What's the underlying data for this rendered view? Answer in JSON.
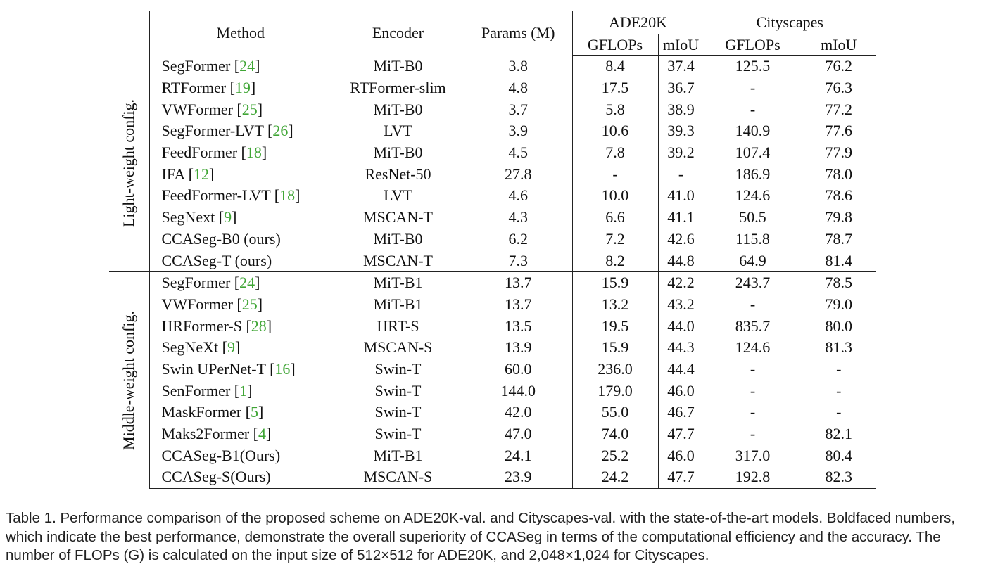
{
  "table": {
    "headers": {
      "method": "Method",
      "encoder": "Encoder",
      "params": "Params (M)",
      "ade20k": "ADE20K",
      "cityscapes": "Cityscapes",
      "gflops": "GFLOPs",
      "miou": "mIoU"
    },
    "groups": [
      {
        "label": "Light-weight config.",
        "rows": [
          {
            "name": "SegFormer",
            "ref": "24",
            "encoder": "MiT-B0",
            "params": "3.8",
            "ade_gflops": "8.4",
            "ade_miou": "37.4",
            "city_gflops": "125.5",
            "city_miou": "76.2",
            "bold": false
          },
          {
            "name": "RTFormer",
            "ref": "19",
            "encoder": "RTFormer-slim",
            "params": "4.8",
            "ade_gflops": "17.5",
            "ade_miou": "36.7",
            "city_gflops": "-",
            "city_miou": "76.3",
            "bold": false
          },
          {
            "name": "VWFormer",
            "ref": "25",
            "encoder": "MiT-B0",
            "params": "3.7",
            "ade_gflops": "5.8",
            "ade_miou": "38.9",
            "city_gflops": "-",
            "city_miou": "77.2",
            "bold": false
          },
          {
            "name": "SegFormer-LVT",
            "ref": "26",
            "encoder": "LVT",
            "params": "3.9",
            "ade_gflops": "10.6",
            "ade_miou": "39.3",
            "city_gflops": "140.9",
            "city_miou": "77.6",
            "bold": false
          },
          {
            "name": "FeedFormer",
            "ref": "18",
            "encoder": "MiT-B0",
            "params": "4.5",
            "ade_gflops": "7.8",
            "ade_miou": "39.2",
            "city_gflops": "107.4",
            "city_miou": "77.9",
            "bold": false
          },
          {
            "name": "IFA",
            "ref": "12",
            "encoder": "ResNet-50",
            "params": "27.8",
            "ade_gflops": "-",
            "ade_miou": "-",
            "city_gflops": "186.9",
            "city_miou": "78.0",
            "bold": false
          },
          {
            "name": "FeedFormer-LVT",
            "ref": "18",
            "encoder": "LVT",
            "params": "4.6",
            "ade_gflops": "10.0",
            "ade_miou": "41.0",
            "city_gflops": "124.6",
            "city_miou": "78.6",
            "bold": false
          },
          {
            "name": "SegNext",
            "ref": "9",
            "encoder": "MSCAN-T",
            "params": "4.3",
            "ade_gflops": "6.6",
            "ade_miou": "41.1",
            "city_gflops": "50.5",
            "city_miou": "79.8",
            "bold": false
          },
          {
            "name": "CCASeg-B0 (ours)",
            "ref": "",
            "encoder": "MiT-B0",
            "params": "6.2",
            "ade_gflops": "7.2",
            "ade_miou": "42.6",
            "city_gflops": "115.8",
            "city_miou": "78.7",
            "bold": true
          },
          {
            "name": "CCASeg-T (ours)",
            "ref": "",
            "encoder": "MSCAN-T",
            "params": "7.3",
            "ade_gflops": "8.2",
            "ade_miou": "44.8",
            "city_gflops": "64.9",
            "city_miou": "81.4",
            "bold": true
          }
        ]
      },
      {
        "label": "Middle-weight config.",
        "rows": [
          {
            "name": "SegFormer",
            "ref": "24",
            "encoder": "MiT-B1",
            "params": "13.7",
            "ade_gflops": "15.9",
            "ade_miou": "42.2",
            "city_gflops": "243.7",
            "city_miou": "78.5",
            "bold": false
          },
          {
            "name": "VWFormer",
            "ref": "25",
            "encoder": "MiT-B1",
            "params": "13.7",
            "ade_gflops": "13.2",
            "ade_miou": "43.2",
            "city_gflops": "-",
            "city_miou": "79.0",
            "bold": false
          },
          {
            "name": "HRFormer-S",
            "ref": "28",
            "encoder": "HRT-S",
            "params": "13.5",
            "ade_gflops": "19.5",
            "ade_miou": "44.0",
            "city_gflops": "835.7",
            "city_miou": "80.0",
            "bold": false
          },
          {
            "name": "SegNeXt",
            "ref": "9",
            "encoder": "MSCAN-S",
            "params": "13.9",
            "ade_gflops": "15.9",
            "ade_miou": "44.3",
            "city_gflops": "124.6",
            "city_miou": "81.3",
            "bold": false
          },
          {
            "name": "Swin UPerNet-T",
            "ref": "16",
            "encoder": "Swin-T",
            "params": "60.0",
            "ade_gflops": "236.0",
            "ade_miou": "44.4",
            "city_gflops": "-",
            "city_miou": "-",
            "bold": false
          },
          {
            "name": "SenFormer",
            "ref": "1",
            "encoder": "Swin-T",
            "params": "144.0",
            "ade_gflops": "179.0",
            "ade_miou": "46.0",
            "city_gflops": "-",
            "city_miou": "-",
            "bold": false
          },
          {
            "name": "MaskFormer",
            "ref": "5",
            "encoder": "Swin-T",
            "params": "42.0",
            "ade_gflops": "55.0",
            "ade_miou": "46.7",
            "city_gflops": "-",
            "city_miou": "-",
            "bold": false
          },
          {
            "name": "Maks2Former",
            "ref": "4",
            "encoder": "Swin-T",
            "params": "47.0",
            "ade_gflops": "74.0",
            "ade_miou": "47.7",
            "city_gflops": "-",
            "city_miou": "82.1",
            "bold": false
          },
          {
            "name": "CCASeg-B1(Ours)",
            "ref": "",
            "encoder": "MiT-B1",
            "params": "24.1",
            "ade_gflops": "25.2",
            "ade_miou": "46.0",
            "city_gflops": "317.0",
            "city_miou": "80.4",
            "bold": true
          },
          {
            "name": "CCASeg-S(Ours)",
            "ref": "",
            "encoder": "MSCAN-S",
            "params": "23.9",
            "ade_gflops": "24.2",
            "ade_miou": "47.7",
            "city_gflops": "192.8",
            "city_miou": "82.3",
            "bold": true
          }
        ]
      }
    ]
  },
  "caption": "Table 1. Performance comparison of the proposed scheme on ADE20K-val. and Cityscapes-val. with the state-of-the-art models. Boldfaced numbers, which indicate the best performance, demonstrate the overall superiority of CCASeg in terms of the computational efficiency and the accuracy. The number of FLOPs (G) is calculated on the input size of 512×512 for ADE20K, and 2,048×1,024 for Cityscapes.",
  "colors": {
    "reference_link": "#3fa535",
    "text": "#111111"
  }
}
